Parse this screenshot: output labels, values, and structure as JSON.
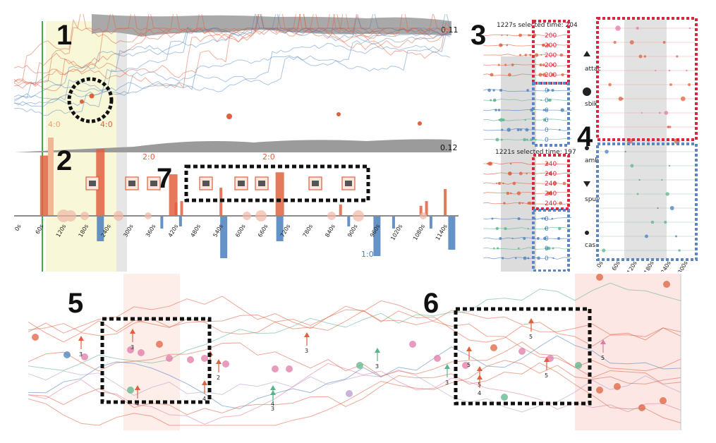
{
  "chart_data": [
    {
      "type": "line",
      "panel": "timeline-overview",
      "labels": {
        "top_value": "0.11",
        "bottom_value": "0.12",
        "score_labels": [
          "4:0",
          "4:0",
          "2:0",
          "2:0",
          "1:0"
        ],
        "x_ticks": [
          "0s",
          "60s",
          "120s",
          "180s",
          "240s",
          "300s",
          "360s",
          "420s",
          "480s",
          "540s",
          "600s",
          "660s",
          "720s",
          "780s",
          "840s",
          "900s",
          "960s",
          "1020s",
          "1080s",
          "1140s"
        ]
      },
      "red_bars": [
        {
          "x": 60,
          "v": 0.9
        },
        {
          "x": 210,
          "v": 1.0
        },
        {
          "x": 405,
          "v": 0.62
        },
        {
          "x": 420,
          "v": 0.2
        },
        {
          "x": 435,
          "v": 0.22
        },
        {
          "x": 540,
          "v": 0.42
        },
        {
          "x": 690,
          "v": 0.65
        },
        {
          "x": 860,
          "v": 0.17
        },
        {
          "x": 1075,
          "v": 0.15
        },
        {
          "x": 1090,
          "v": 0.22
        },
        {
          "x": 1140,
          "v": 0.4
        }
      ],
      "blue_bars": [
        {
          "x": 210,
          "v": 0.6
        },
        {
          "x": 380,
          "v": 0.3
        },
        {
          "x": 430,
          "v": 0.25
        },
        {
          "x": 540,
          "v": 1.0
        },
        {
          "x": 690,
          "v": 0.6
        },
        {
          "x": 880,
          "v": 0.25
        },
        {
          "x": 950,
          "v": 0.95
        },
        {
          "x": 1000,
          "v": 0.3
        },
        {
          "x": 1100,
          "v": 0.3
        },
        {
          "x": 1150,
          "v": 0.8
        }
      ],
      "x_range": [
        0,
        1170
      ]
    },
    {
      "type": "scatter",
      "panel": "selection-detail",
      "labels": {
        "selection_top": "1227s selected time: 204",
        "selection_bottom": "1221s selected time: 197",
        "values_red_top": [
          "200",
          "200",
          "200",
          "200",
          "200"
        ],
        "values_blue_top": [
          "0",
          "0",
          "0",
          "0",
          "0",
          "0"
        ],
        "values_red_bottom": [
          "240",
          "240",
          "240",
          "240",
          "240"
        ],
        "values_blue_bottom": [
          "0",
          "0",
          "0",
          "0",
          "0"
        ]
      }
    },
    {
      "type": "scatter",
      "panel": "action-glyph-view",
      "labels": {
        "rows": [
          "attac",
          "sbik",
          "amb",
          "spuv",
          "cas"
        ],
        "x_ticks": [
          "0s",
          "60s",
          "120s",
          "180s",
          "240s",
          "300s"
        ]
      }
    },
    {
      "type": "line",
      "panel": "player-flow",
      "labels": {
        "counts": [
          "3",
          "3",
          "3",
          "2",
          "4",
          "3",
          "4",
          "3",
          "3",
          "3",
          "4",
          "5",
          "5",
          "5",
          "5",
          "4",
          "5"
        ]
      }
    }
  ],
  "callouts": [
    "1",
    "2",
    "3",
    "4",
    "5",
    "6",
    "7"
  ],
  "colors": {
    "red": "#e0613f",
    "blue": "#4a7fbd",
    "pink": "#e27aa8",
    "green": "#5bb58a",
    "gray": "#8c8c8c"
  }
}
